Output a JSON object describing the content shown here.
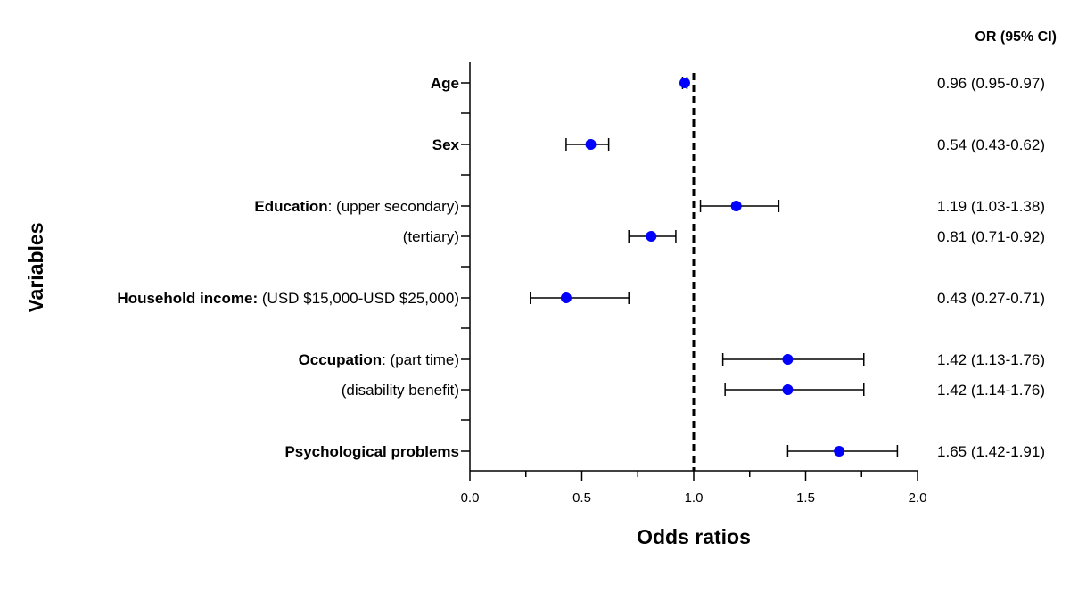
{
  "chart_data": {
    "type": "scatter",
    "subtype": "forest-plot",
    "xlabel": "Odds ratios",
    "ylabel": "Variables",
    "xlim": [
      0.0,
      2.0
    ],
    "x_ticks": [
      "0.0",
      "0.5",
      "1.0",
      "1.5",
      "2.0"
    ],
    "reference_line": 1.0,
    "right_column_header": "OR (95% CI)",
    "marker_color": "#0000ff",
    "rows": [
      {
        "label_bold": "Age",
        "label_rest": "",
        "or": 0.96,
        "ci": [
          0.95,
          0.97
        ],
        "text": "0.96 (0.95-0.97)"
      },
      {
        "label_bold": "Sex",
        "label_rest": "",
        "or": 0.54,
        "ci": [
          0.43,
          0.62
        ],
        "text": "0.54 (0.43-0.62)"
      },
      {
        "label_bold": "Education",
        "label_rest": ": (upper secondary)",
        "or": 1.19,
        "ci": [
          1.03,
          1.38
        ],
        "text": "1.19 (1.03-1.38)"
      },
      {
        "label_bold": "",
        "label_rest": "(tertiary)",
        "or": 0.81,
        "ci": [
          0.71,
          0.92
        ],
        "text": "0.81 (0.71-0.92)"
      },
      {
        "label_bold": "Household income:",
        "label_rest": " (USD $15,000-USD $25,000)",
        "or": 0.43,
        "ci": [
          0.27,
          0.71
        ],
        "text": "0.43 (0.27-0.71)"
      },
      {
        "label_bold": "Occupation",
        "label_rest": ": (part time)",
        "or": 1.42,
        "ci": [
          1.13,
          1.76
        ],
        "text": "1.42 (1.13-1.76)"
      },
      {
        "label_bold": "",
        "label_rest": "(disability benefit)",
        "or": 1.42,
        "ci": [
          1.14,
          1.76
        ],
        "text": "1.42 (1.14-1.76)"
      },
      {
        "label_bold": "Psychological problems",
        "label_rest": "",
        "or": 1.65,
        "ci": [
          1.42,
          1.91
        ],
        "text": "1.65 (1.42-1.91)"
      }
    ]
  }
}
